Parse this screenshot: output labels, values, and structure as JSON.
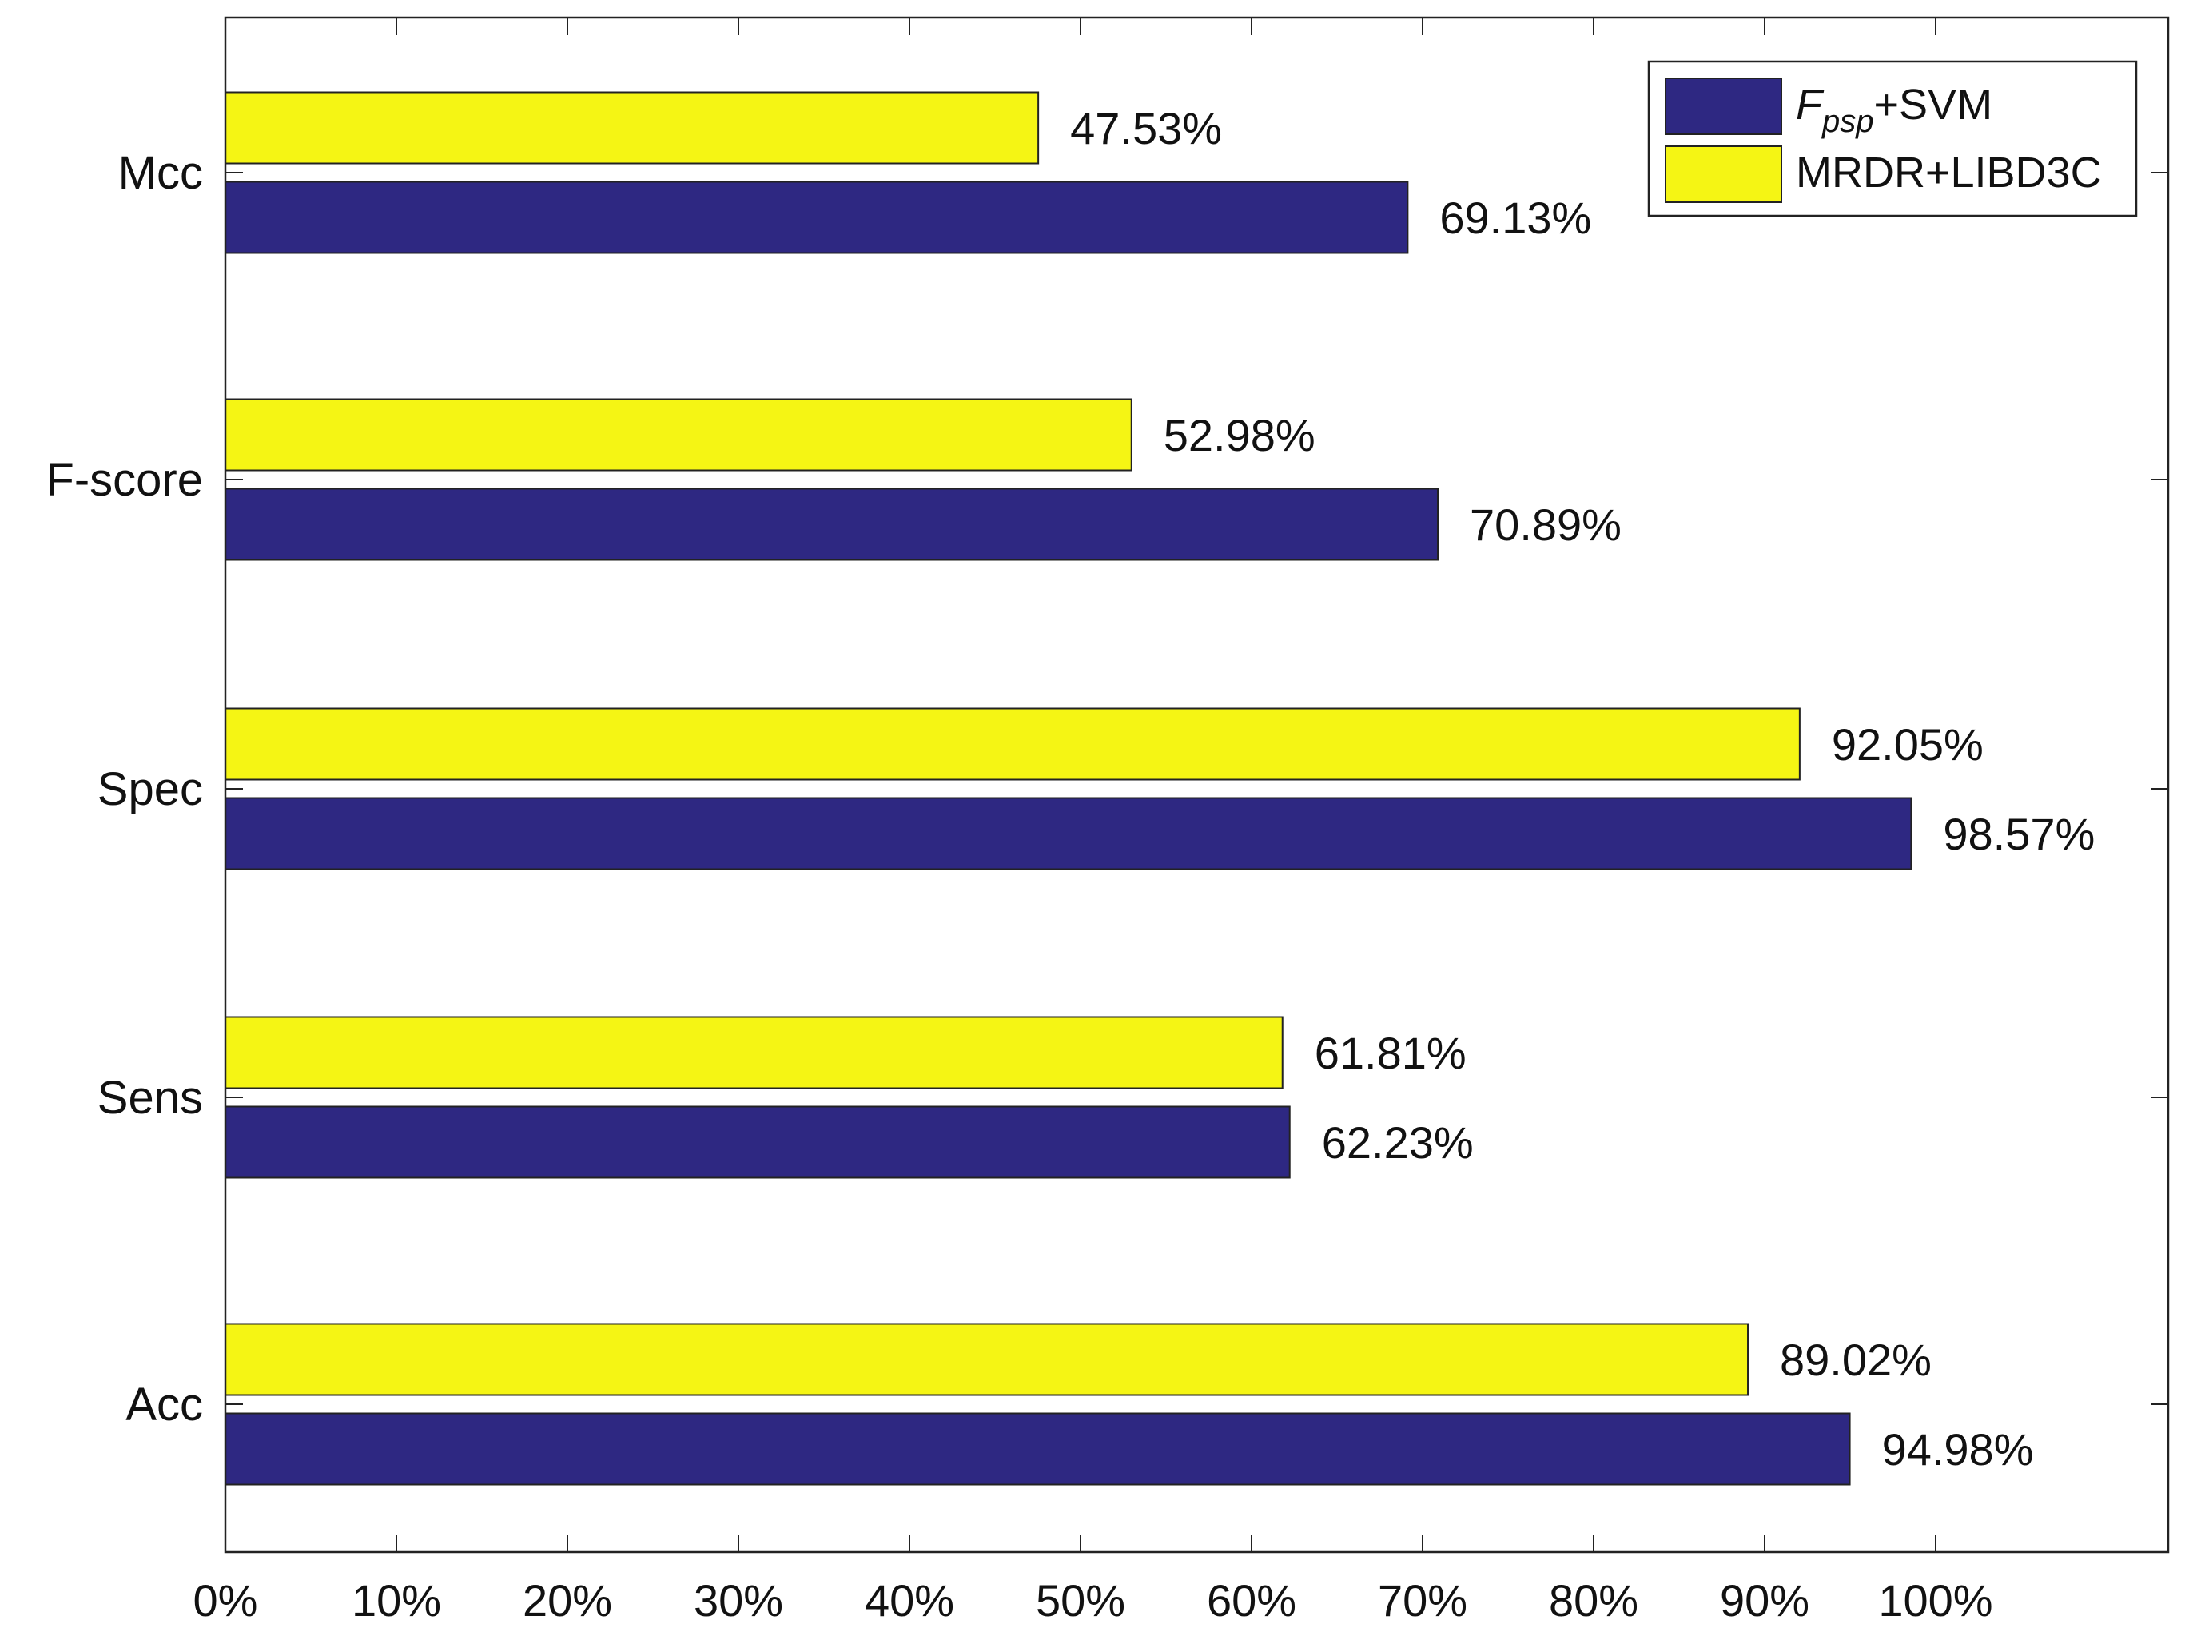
{
  "chart_data": {
    "type": "bar",
    "orientation": "horizontal",
    "title": "",
    "xlabel": "",
    "ylabel": "",
    "categories": [
      "Acc",
      "Sens",
      "Spec",
      "F-score",
      "Mcc"
    ],
    "series": [
      {
        "name": "Fpsp+SVM",
        "legend_main": "F",
        "legend_sub": "psp",
        "legend_suffix": "+SVM",
        "color": "#2e2882",
        "values": [
          94.98,
          62.23,
          98.57,
          70.89,
          69.13
        ],
        "labels": [
          "94.98%",
          "62.23%",
          "98.57%",
          "70.89%",
          "69.13%"
        ]
      },
      {
        "name": "MRDR+LIBD3C",
        "legend_main": "MRDR+LIBD3C",
        "color": "#f5f514",
        "values": [
          89.02,
          61.81,
          92.05,
          52.98,
          47.53
        ],
        "labels": [
          "89.02%",
          "61.81%",
          "92.05%",
          "52.98%",
          "47.53%"
        ]
      }
    ],
    "xlim": [
      0,
      115
    ],
    "xticks": [
      0,
      10,
      20,
      30,
      40,
      50,
      60,
      70,
      80,
      90,
      100
    ],
    "xtick_labels": [
      "0%",
      "10%",
      "20%",
      "30%",
      "40%",
      "50%",
      "60%",
      "70%",
      "80%",
      "90%",
      "100%"
    ],
    "grid": false,
    "legend_position": "top-right"
  }
}
